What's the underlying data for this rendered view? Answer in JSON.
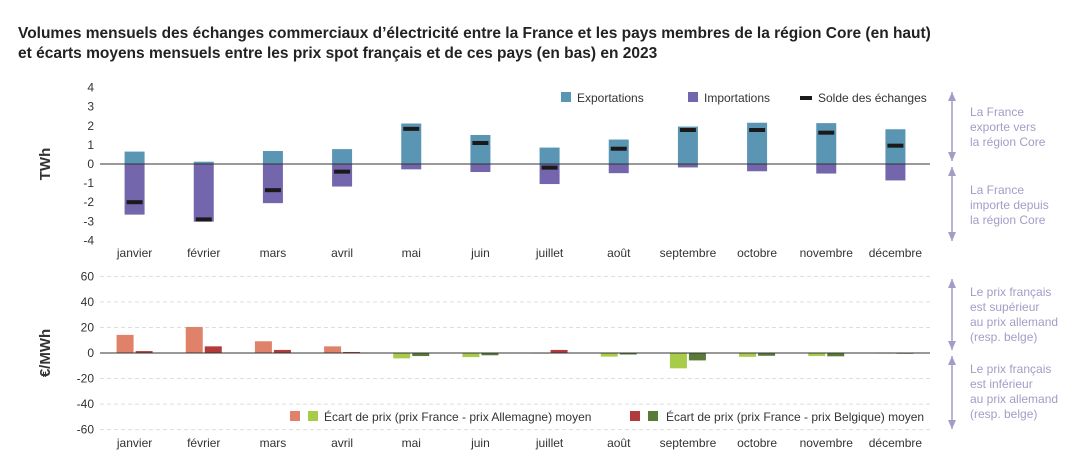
{
  "title": {
    "line1": "Volumes mensuels des échanges commerciaux d’électricité entre la France et les pays membres de la région Core (en haut)",
    "line2": "et écarts moyens mensuels entre les prix spot français et de ces pays (en bas) en 2023"
  },
  "colors": {
    "exports": "#5b95b4",
    "imports": "#7366ad",
    "balance": "#1a1a1a",
    "germany_pos": "#e0826a",
    "germany_neg": "#a8cb4a",
    "belgium_pos": "#b23a3a",
    "belgium_neg": "#5a7a3a",
    "annotation": "#a49cc6",
    "axis_text": "#333333"
  },
  "chart_data": [
    {
      "type": "bar",
      "ylabel": "TWh",
      "ylim": [
        -4,
        4
      ],
      "yticks": [
        "4",
        "3",
        "2",
        "1",
        "0",
        "-1",
        "-2",
        "-3",
        "-4"
      ],
      "categories": [
        "janvier",
        "février",
        "mars",
        "avril",
        "mai",
        "juin",
        "juillet",
        "août",
        "septembre",
        "octobre",
        "novembre",
        "décembre"
      ],
      "legend_position": "top-right",
      "series": [
        {
          "name": "Exportations",
          "values": [
            0.65,
            0.12,
            0.68,
            0.78,
            2.12,
            1.52,
            0.86,
            1.28,
            1.96,
            2.16,
            2.14,
            1.82
          ]
        },
        {
          "name": "Importations",
          "values": [
            -2.65,
            -3.02,
            -2.05,
            -1.18,
            -0.28,
            -0.42,
            -1.05,
            -0.48,
            -0.18,
            -0.38,
            -0.5,
            -0.86
          ]
        },
        {
          "name": "Solde des échanges",
          "values": [
            -2.0,
            -2.9,
            -1.37,
            -0.4,
            1.84,
            1.1,
            -0.19,
            0.8,
            1.78,
            1.78,
            1.64,
            0.96
          ]
        }
      ],
      "annotations": [
        [
          "La France",
          "exporte vers",
          "la région Core"
        ],
        [
          "La France",
          "importe depuis",
          "la région Core"
        ]
      ]
    },
    {
      "type": "bar",
      "ylabel": "€/MWh",
      "ylim": [
        -60,
        60
      ],
      "yticks": [
        "60",
        "40",
        "20",
        "0",
        "-20",
        "-40",
        "-60"
      ],
      "categories": [
        "janvier",
        "février",
        "mars",
        "avril",
        "mai",
        "juin",
        "juillet",
        "août",
        "septembre",
        "octobre",
        "novembre",
        "décembre"
      ],
      "legend_position": "bottom-right",
      "series": [
        {
          "name": "Écart de prix (prix France - prix Allemagne) moyen",
          "values": [
            14.2,
            20.4,
            9.2,
            5.2,
            -4.2,
            -3.2,
            -0.4,
            -2.8,
            -12.0,
            -3.0,
            -2.4,
            -0.4
          ]
        },
        {
          "name": "Écart de prix (prix France - prix Belgique) moyen",
          "values": [
            1.5,
            5.2,
            2.4,
            0.8,
            -2.4,
            -1.8,
            2.4,
            -1.2,
            -5.8,
            -2.2,
            -2.6,
            -0.6
          ]
        }
      ],
      "annotations": [
        [
          "Le prix français",
          "est supérieur",
          "au prix allemand",
          "(resp. belge)"
        ],
        [
          "Le prix français",
          "est inférieur",
          "au prix allemand",
          "(resp. belge)"
        ]
      ]
    }
  ]
}
